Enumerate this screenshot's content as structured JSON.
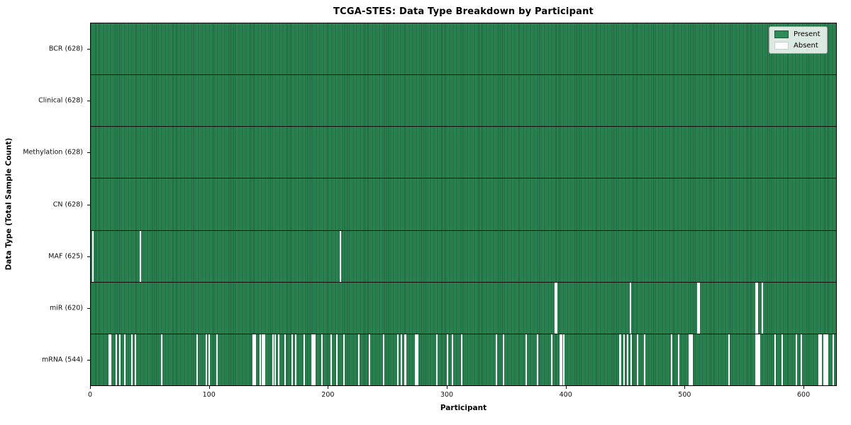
{
  "chart_data": {
    "type": "heatmap",
    "title": "TCGA-STES: Data Type Breakdown by Participant",
    "xlabel": "Participant",
    "ylabel": "Data Type (Total Sample Count)",
    "xlim": [
      0,
      628
    ],
    "total_participants": 628,
    "x_ticks": [
      0,
      100,
      200,
      300,
      400,
      500,
      600
    ],
    "grid": false,
    "legend": {
      "position": "upper right",
      "entries": [
        {
          "label": "Present",
          "color": "#2e8b57"
        },
        {
          "label": "Absent",
          "color": "#ffffff"
        }
      ]
    },
    "colors": {
      "present_fill": "#2e8b57",
      "present_edge": "#1b5e3a",
      "absent_fill": "#ffffff",
      "row_divider": "#0c0c0c"
    },
    "rows": [
      {
        "data_type": "BCR",
        "label": "BCR (628)",
        "present_count": 628,
        "absent_count": 0,
        "absent_participants": []
      },
      {
        "data_type": "Clinical",
        "label": "Clinical (628)",
        "present_count": 628,
        "absent_count": 0,
        "absent_participants": []
      },
      {
        "data_type": "Methylation",
        "label": "Methylation (628)",
        "present_count": 628,
        "absent_count": 0,
        "absent_participants": []
      },
      {
        "data_type": "CN",
        "label": "CN (628)",
        "present_count": 628,
        "absent_count": 0,
        "absent_participants": []
      },
      {
        "data_type": "MAF",
        "label": "MAF (625)",
        "present_count": 625,
        "absent_count": 3,
        "absent_participants": [
          1,
          41,
          210
        ]
      },
      {
        "data_type": "miR",
        "label": "miR (620)",
        "present_count": 620,
        "absent_count": 8,
        "absent_participants": [
          391,
          392,
          454,
          511,
          512,
          560,
          561,
          565
        ]
      },
      {
        "data_type": "mRNA",
        "label": "mRNA (544)",
        "present_count": 544,
        "absent_count": 84,
        "absent_participants": [
          15,
          16,
          21,
          24,
          28,
          34,
          37,
          59,
          89,
          97,
          99,
          106,
          136,
          137,
          138,
          142,
          144,
          145,
          146,
          153,
          155,
          158,
          163,
          169,
          172,
          179,
          186,
          187,
          188,
          194,
          202,
          207,
          213,
          225,
          234,
          246,
          258,
          261,
          264,
          265,
          273,
          274,
          275,
          291,
          300,
          304,
          312,
          341,
          347,
          366,
          376,
          388,
          395,
          396,
          398,
          445,
          446,
          449,
          452,
          455,
          460,
          466,
          489,
          495,
          504,
          505,
          506,
          537,
          560,
          561,
          562,
          563,
          576,
          582,
          594,
          598,
          613,
          614,
          615,
          617,
          618,
          619,
          620,
          625
        ]
      }
    ]
  }
}
